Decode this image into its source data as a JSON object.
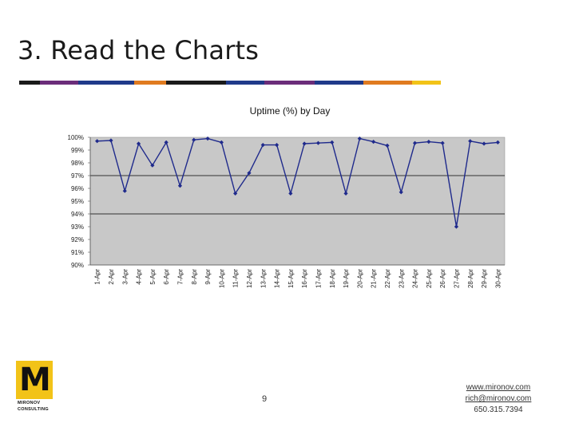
{
  "slide": {
    "title": "3. Read the Charts",
    "page_number": "9",
    "contact": {
      "website": "www.mironov.com",
      "email": "rich@mironov.com",
      "phone": "650.315.7394"
    },
    "logo": {
      "mark": "M",
      "line1": "MIRONOV",
      "line2": "CONSULTING"
    },
    "stripe_colors": [
      "#1a1a1a",
      "#6b2d7a",
      "#1f3a8a",
      "#e07b20",
      "#1a1a1a",
      "#1f3a8a",
      "#6b2d7a",
      "#1f3a8a",
      "#e07b20",
      "#f2c318"
    ]
  },
  "chart_data": {
    "type": "line",
    "title": "Uptime (%) by Day",
    "xlabel": "",
    "ylabel": "",
    "categories": [
      "1-Apr",
      "2-Apr",
      "3-Apr",
      "4-Apr",
      "5-Apr",
      "6-Apr",
      "7-Apr",
      "8-Apr",
      "9-Apr",
      "10-Apr",
      "11-Apr",
      "12-Apr",
      "13-Apr",
      "14-Apr",
      "15-Apr",
      "16-Apr",
      "17-Apr",
      "18-Apr",
      "19-Apr",
      "20-Apr",
      "21-Apr",
      "22-Apr",
      "23-Apr",
      "24-Apr",
      "25-Apr",
      "26-Apr",
      "27-Apr",
      "28-Apr",
      "29-Apr",
      "30-Apr"
    ],
    "series": [
      {
        "name": "",
        "values": [
          99.7,
          99.75,
          95.8,
          99.5,
          97.8,
          99.6,
          96.2,
          99.8,
          99.9,
          99.6,
          95.6,
          97.2,
          99.4,
          99.4,
          95.6,
          99.5,
          99.55,
          99.6,
          95.6,
          99.9,
          99.65,
          99.35,
          95.7,
          99.55,
          99.65,
          99.55,
          93.0,
          99.7,
          99.5,
          99.6
        ]
      }
    ],
    "ylim": [
      90,
      100
    ],
    "ytick_labels": [
      "90%",
      "91%",
      "92%",
      "93%",
      "94%",
      "95%",
      "96%",
      "97%",
      "98%",
      "99%",
      "100%"
    ],
    "gridlines": [
      94,
      97
    ],
    "colors": {
      "line": "#1f2a8c",
      "plot_bg": "#c8c8c8"
    },
    "legend": "none"
  }
}
